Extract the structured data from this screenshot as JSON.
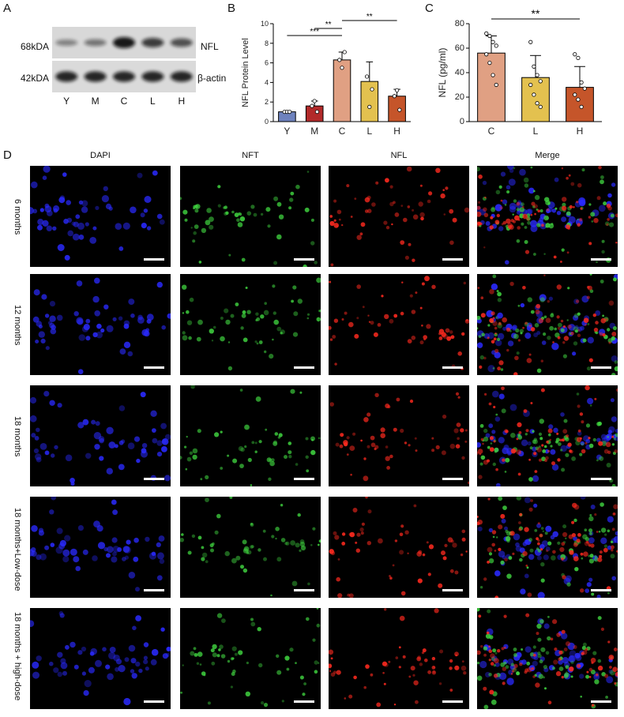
{
  "panels": {
    "A": {
      "letter": "A",
      "bands": [
        {
          "size": "68kDA",
          "protein": "NFL",
          "intensity": [
            0.25,
            0.35,
            1.0,
            0.75,
            0.6
          ]
        },
        {
          "size": "42kDA",
          "protein": "β-actin",
          "intensity": [
            0.9,
            0.9,
            0.9,
            0.9,
            0.9
          ]
        }
      ],
      "lanes": [
        "Y",
        "M",
        "C",
        "L",
        "H"
      ]
    },
    "B": {
      "letter": "B"
    },
    "C": {
      "letter": "C"
    },
    "D": {
      "letter": "D",
      "columns": [
        "DAPI",
        "NFT",
        "NFL",
        "Merge"
      ],
      "rows": [
        "6 months",
        "12 months",
        "18 months",
        "18 months+Low-dose",
        "18 months + high-dose"
      ]
    }
  },
  "colors": {
    "Y": "#6e82be",
    "M": "#b22a2a",
    "C": "#e0a083",
    "L": "#e3c14f",
    "H": "#c5552a",
    "dapi": "#2a2aff",
    "nft": "#3fd23f",
    "nfl": "#ff2a1f"
  },
  "chart_data": [
    {
      "type": "bar",
      "categories": [
        "Y",
        "M",
        "C",
        "L",
        "H"
      ],
      "values": [
        1.0,
        1.6,
        6.3,
        4.1,
        2.6
      ],
      "errors": [
        0.05,
        0.5,
        0.8,
        2.0,
        0.7
      ],
      "points": [
        [
          1.0,
          1.0,
          1.0
        ],
        [
          1.6,
          2.1,
          1.0
        ],
        [
          6.3,
          5.5,
          7.1
        ],
        [
          4.6,
          1.5,
          3.3
        ],
        [
          2.6,
          3.2,
          1.2
        ]
      ],
      "ylabel": "NFL Protein Level",
      "ylim": [
        0,
        10
      ],
      "yticks": [
        0,
        2,
        4,
        6,
        8,
        10
      ],
      "annotations": [
        {
          "from": "Y",
          "to": "C",
          "label": "***"
        },
        {
          "from": "M",
          "to": "C",
          "label": "**"
        },
        {
          "from": "C",
          "to": "H",
          "label": "**"
        }
      ]
    },
    {
      "type": "bar",
      "categories": [
        "C",
        "L",
        "H"
      ],
      "values": [
        56,
        36,
        28
      ],
      "errors": [
        14,
        18,
        17
      ],
      "points": [
        [
          72,
          70,
          65,
          62,
          55,
          48,
          38,
          30
        ],
        [
          65,
          45,
          38,
          33,
          30,
          22,
          15,
          12
        ],
        [
          55,
          52,
          32,
          27,
          22,
          18,
          12
        ]
      ],
      "ylabel": "NFL (pg/ml)",
      "ylim": [
        0,
        80
      ],
      "yticks": [
        0,
        20,
        40,
        60,
        80
      ],
      "annotations": [
        {
          "from": "C",
          "to": "H",
          "label": "**"
        }
      ]
    }
  ]
}
